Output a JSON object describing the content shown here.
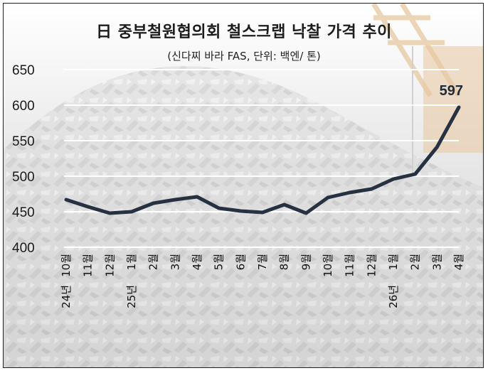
{
  "title": "日 중부철원협의회 철스크랩 낙찰 가격 추이",
  "subtitle": "(신다찌 바라 FAS, 단위: 백엔/ 톤)",
  "chart_data": {
    "type": "line",
    "title": "日 중부철원협의회 철스크랩 낙찰 가격 추이",
    "subtitle": "(신다찌 바라 FAS, 단위: 백엔/ 톤)",
    "categories": [
      "10월",
      "11월",
      "12월",
      "1월",
      "2월",
      "3월",
      "4월",
      "5월",
      "6월",
      "7월",
      "8월",
      "9월",
      "10월",
      "11월",
      "12월",
      "1월",
      "2월",
      "3월",
      "4월"
    ],
    "year_markers": [
      {
        "index": 0,
        "label": "24년"
      },
      {
        "index": 3,
        "label": "25년"
      },
      {
        "index": 15,
        "label": "26년"
      }
    ],
    "values": [
      467,
      457,
      448,
      450,
      462,
      467,
      471,
      455,
      451,
      449,
      460,
      448,
      470,
      477,
      482,
      496,
      503,
      541,
      597
    ],
    "yticks": [
      400,
      450,
      500,
      550,
      600,
      650
    ],
    "ylim": [
      400,
      650
    ],
    "annotation": "597",
    "grid": true,
    "line_color": "#263242"
  }
}
